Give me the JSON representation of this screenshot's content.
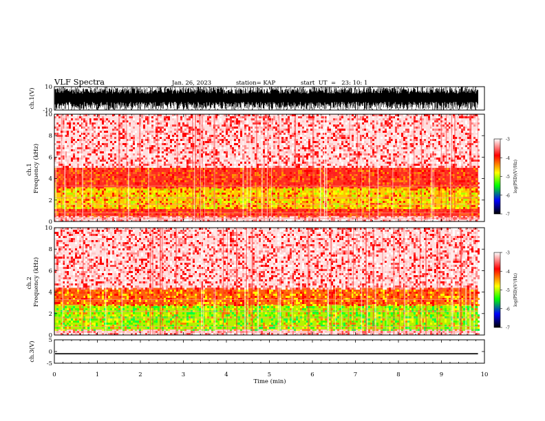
{
  "header": {
    "title": "VLF Spectra",
    "date": "Jan. 26, 2023",
    "station": "station= KAP",
    "start_ut": "start  UT  =   23: 10: 1"
  },
  "colorbar": {
    "label": "log(PSD)(V²/Hz)",
    "ticks": [
      "-3",
      "-4",
      "-5",
      "-6",
      "-7"
    ],
    "colors": [
      "#ffffff",
      "#ff0000",
      "#ffff00",
      "#00ff00",
      "#0000ff",
      "#000000"
    ]
  },
  "chart_data": [
    {
      "type": "line",
      "name": "ch1-waveform",
      "ylabel": "ch.1(V)",
      "ylim": [
        -10,
        10
      ],
      "yticks": [
        "10",
        "-10"
      ],
      "xlim": [
        0,
        10
      ],
      "fill_color": "#000000"
    },
    {
      "type": "heatmap",
      "name": "ch1-spectrogram",
      "ylabel": "ch.1\nFrequency (kHz)",
      "ylim": [
        0,
        10
      ],
      "yticks": [
        "10",
        "8",
        "6",
        "4",
        "2",
        "0"
      ],
      "xlim": [
        0,
        10
      ],
      "data_end_min": 9.85,
      "bands_khz": [
        {
          "from": 0,
          "to": 0.5,
          "level": "white-red"
        },
        {
          "from": 0.5,
          "to": 1.2,
          "level": "red"
        },
        {
          "from": 1.2,
          "to": 3.2,
          "level": "yellow-green"
        },
        {
          "from": 3.2,
          "to": 5.0,
          "level": "red"
        },
        {
          "from": 5.0,
          "to": 10,
          "level": "red-white"
        }
      ]
    },
    {
      "type": "heatmap",
      "name": "ch2-spectrogram",
      "ylabel": "ch.2\nFrequency (kHz)",
      "ylim": [
        0,
        10
      ],
      "yticks": [
        "10",
        "8",
        "6",
        "4",
        "2",
        "0"
      ],
      "xlim": [
        0,
        10
      ],
      "data_end_min": 9.85,
      "bands_khz": [
        {
          "from": 0,
          "to": 0.5,
          "level": "white-red"
        },
        {
          "from": 0.5,
          "to": 2.8,
          "level": "green-yellow"
        },
        {
          "from": 2.8,
          "to": 4.4,
          "level": "red-yellow"
        },
        {
          "from": 4.4,
          "to": 10,
          "level": "red-white"
        }
      ]
    },
    {
      "type": "line",
      "name": "ch3-waveform",
      "ylabel": "ch.3(V)",
      "ylim": [
        -5,
        5
      ],
      "yticks": [
        "5",
        "0",
        "-5"
      ],
      "xlim": [
        0,
        10
      ],
      "xlabel": "Time (min)",
      "xticks": [
        "0",
        "1",
        "2",
        "3",
        "4",
        "5",
        "6",
        "7",
        "8",
        "9",
        "10"
      ],
      "band": [
        -1.2,
        -0.7
      ]
    }
  ]
}
